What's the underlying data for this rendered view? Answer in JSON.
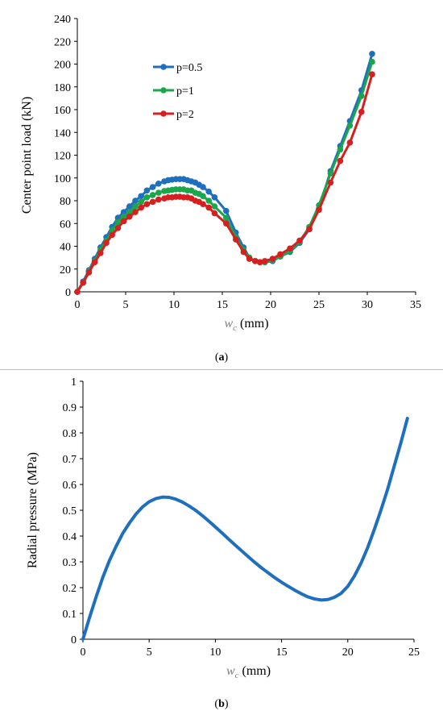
{
  "chart_data": [
    {
      "type": "line",
      "panel": "a",
      "caption_prefix": "(",
      "caption_letter": "a",
      "caption_suffix": ")",
      "xlabel_main": "w",
      "xlabel_sub": "c",
      "xlabel_unit": " (mm)",
      "ylabel": "Center point load (kN)",
      "xlim": [
        0,
        35
      ],
      "ylim": [
        0,
        240
      ],
      "xticks": [
        0,
        5,
        10,
        15,
        20,
        25,
        30,
        35
      ],
      "yticks": [
        0,
        20,
        40,
        60,
        80,
        100,
        120,
        140,
        160,
        180,
        200,
        220,
        240
      ],
      "legend_position": "upper-left-inside",
      "markers": true,
      "series": [
        {
          "name": "p=0.5",
          "color": "#1f6fbf",
          "x": [
            0,
            0.6,
            1.2,
            1.8,
            2.4,
            3.0,
            3.6,
            4.2,
            4.8,
            5.4,
            6.0,
            6.6,
            7.2,
            7.8,
            8.4,
            9.0,
            9.4,
            9.8,
            10.2,
            10.6,
            11.0,
            11.4,
            11.8,
            12.2,
            12.6,
            13.0,
            13.6,
            14.2,
            15.4,
            16.4,
            17.2,
            17.8,
            18.4,
            18.9,
            19.4,
            20.2,
            21.0,
            22.0,
            23.0,
            24.0,
            25.0,
            26.2,
            27.2,
            28.2,
            29.4,
            30.5
          ],
          "y": [
            0,
            9,
            19,
            29,
            39,
            48,
            57,
            65,
            70,
            75,
            80,
            84,
            89,
            92,
            95,
            97,
            98,
            98.5,
            99,
            99,
            99,
            98,
            97,
            96,
            94,
            92,
            88,
            83,
            71,
            52,
            39,
            30,
            27,
            26,
            26,
            27,
            31,
            35,
            43,
            55,
            73,
            106,
            128,
            150,
            177,
            209
          ]
        },
        {
          "name": "p=1",
          "color": "#1aa64b",
          "x": [
            0,
            0.6,
            1.2,
            1.8,
            2.4,
            3.0,
            3.6,
            4.2,
            4.8,
            5.4,
            6.0,
            6.6,
            7.2,
            7.8,
            8.4,
            9.0,
            9.4,
            9.8,
            10.2,
            10.6,
            11.0,
            11.4,
            11.8,
            12.2,
            12.6,
            13.0,
            13.6,
            14.2,
            15.4,
            16.4,
            17.2,
            17.8,
            18.4,
            18.9,
            19.4,
            20.2,
            21.0,
            22.0,
            23.0,
            24.0,
            25.0,
            26.2,
            27.2,
            28.2,
            29.4,
            30.5
          ],
          "y": [
            0,
            8,
            18,
            27,
            37,
            45,
            54,
            61,
            66,
            70,
            75,
            79,
            83,
            85,
            87,
            88.5,
            89,
            89.5,
            90,
            90,
            90,
            89,
            89,
            87,
            86,
            84,
            80,
            75,
            65,
            48,
            37,
            30,
            27,
            26,
            26,
            28,
            31,
            36,
            44,
            57,
            76,
            104,
            125,
            146,
            172,
            202
          ]
        },
        {
          "name": "p=2",
          "color": "#d81f1f",
          "x": [
            0,
            0.6,
            1.2,
            1.8,
            2.4,
            3.0,
            3.6,
            4.2,
            4.8,
            5.4,
            6.0,
            6.6,
            7.2,
            7.8,
            8.4,
            9.0,
            9.4,
            9.8,
            10.2,
            10.6,
            11.0,
            11.4,
            11.8,
            12.2,
            12.6,
            13.0,
            13.6,
            14.2,
            15.4,
            16.4,
            17.2,
            17.8,
            18.4,
            18.9,
            19.4,
            20.2,
            21.0,
            22.0,
            23.0,
            24.0,
            25.0,
            26.2,
            27.2,
            28.2,
            29.4,
            30.5
          ],
          "y": [
            0,
            8,
            17,
            26,
            34,
            43,
            50,
            56,
            62,
            66,
            70,
            74,
            77,
            79,
            81,
            82,
            83,
            83,
            83.5,
            83.5,
            83,
            83,
            82,
            80,
            79,
            77,
            74,
            69,
            60,
            46,
            35,
            29,
            27,
            26,
            27,
            29,
            33,
            38,
            45,
            55,
            72,
            96,
            115,
            131,
            158,
            191
          ]
        }
      ]
    },
    {
      "type": "line",
      "panel": "b",
      "caption_prefix": "(",
      "caption_letter": "b",
      "caption_suffix": ")",
      "xlabel_main": "w",
      "xlabel_sub": "c",
      "xlabel_unit": " (mm)",
      "ylabel": "Radial pressure (MPa)",
      "xlim": [
        0,
        25
      ],
      "ylim": [
        0,
        1
      ],
      "xticks": [
        0,
        5,
        10,
        15,
        20,
        25
      ],
      "yticks": [
        "0",
        "0.1",
        "0.2",
        "0.3",
        "0.4",
        "0.5",
        "0.6",
        "0.7",
        "0.8",
        "0.9",
        "1"
      ],
      "markers": false,
      "series": [
        {
          "color": "#1f6fbf",
          "x": [
            0,
            0.5,
            1,
            1.5,
            2,
            2.5,
            3,
            3.5,
            4,
            4.5,
            5,
            5.5,
            6,
            6.5,
            7,
            7.5,
            8,
            8.5,
            9,
            9.5,
            10,
            10.5,
            11,
            11.5,
            12,
            12.5,
            13,
            13.5,
            14,
            14.5,
            15,
            15.5,
            16,
            16.5,
            17,
            17.5,
            18,
            18.5,
            19,
            19.5,
            20,
            20.5,
            21,
            21.5,
            22,
            22.5,
            23,
            23.5,
            24,
            24.5
          ],
          "y": [
            0,
            0.085,
            0.165,
            0.24,
            0.305,
            0.36,
            0.41,
            0.45,
            0.485,
            0.513,
            0.533,
            0.545,
            0.551,
            0.55,
            0.543,
            0.532,
            0.517,
            0.5,
            0.48,
            0.458,
            0.435,
            0.412,
            0.388,
            0.365,
            0.342,
            0.319,
            0.297,
            0.276,
            0.257,
            0.238,
            0.221,
            0.205,
            0.19,
            0.176,
            0.164,
            0.156,
            0.152,
            0.154,
            0.163,
            0.178,
            0.205,
            0.245,
            0.295,
            0.355,
            0.425,
            0.5,
            0.58,
            0.67,
            0.76,
            0.856
          ]
        }
      ]
    }
  ]
}
